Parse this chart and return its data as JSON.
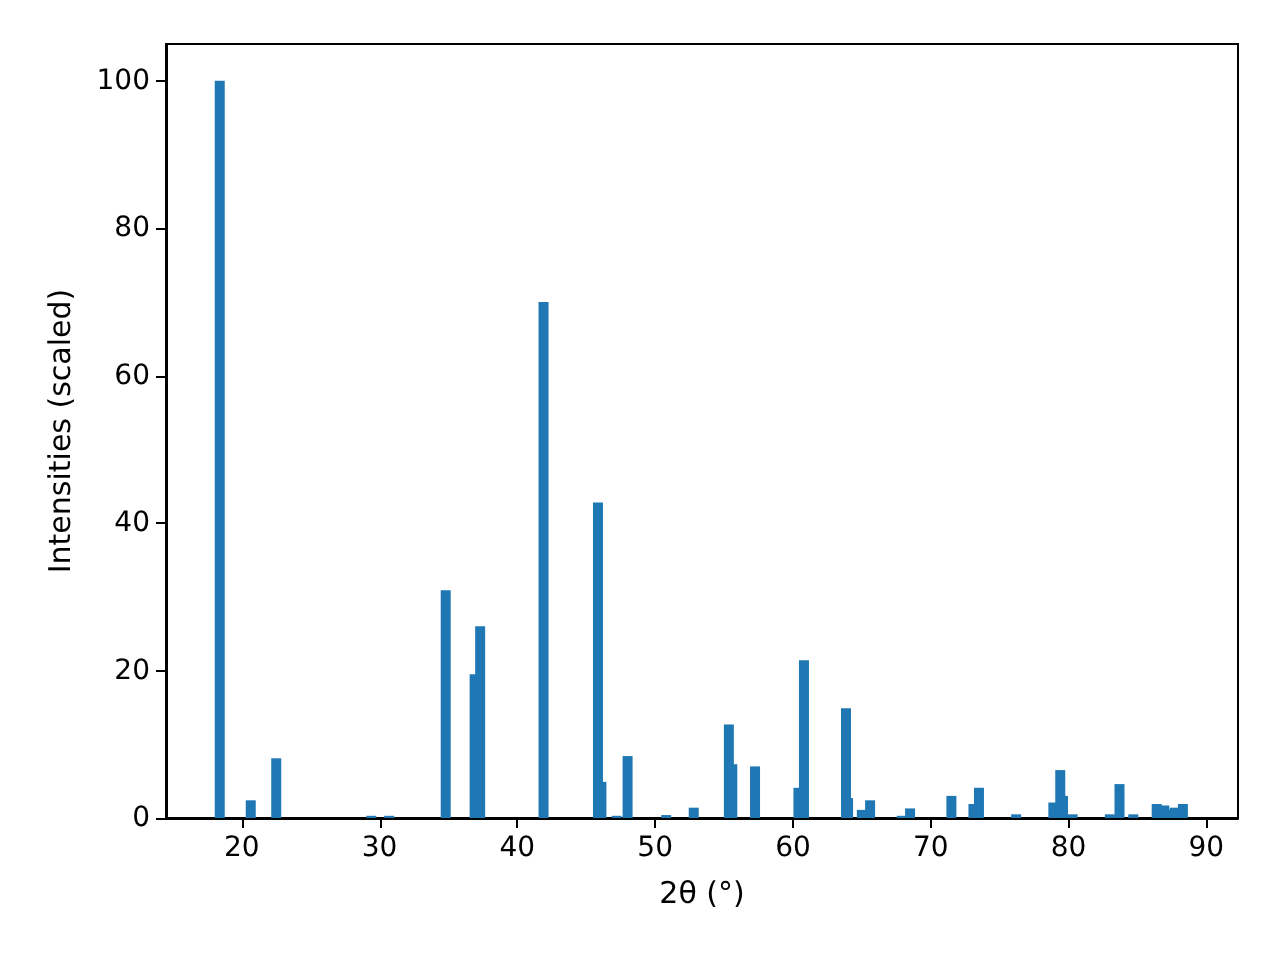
{
  "chart_data": {
    "type": "bar",
    "xlabel": "2θ (°)",
    "ylabel": "Intensities (scaled)",
    "color": "#1f77b4",
    "x": [
      18.4,
      20.65,
      22.5,
      29.4,
      30.7,
      34.8,
      36.9,
      37.3,
      41.9,
      45.85,
      46.1,
      47.2,
      48.0,
      50.8,
      52.8,
      55.35,
      55.6,
      57.25,
      60.4,
      60.8,
      63.85,
      64.0,
      65.0,
      65.6,
      67.9,
      68.5,
      71.5,
      73.1,
      73.5,
      76.2,
      78.9,
      79.4,
      79.6,
      80.3,
      83.0,
      83.7,
      84.7,
      86.4,
      86.95,
      87.25,
      87.7,
      88.3
    ],
    "values": [
      100,
      2.4,
      8.1,
      0.3,
      0.3,
      30.9,
      19.5,
      26,
      70,
      42.8,
      4.9,
      0.3,
      8.4,
      0.4,
      1.4,
      12.7,
      7.3,
      7.0,
      4.1,
      21.4,
      14.9,
      2.7,
      1.1,
      2.4,
      0.3,
      1.3,
      3.0,
      1.9,
      4.1,
      0.5,
      2.1,
      6.5,
      3.0,
      0.5,
      0.5,
      4.6,
      0.5,
      1.9,
      1.7,
      1.1,
      1.4,
      1.9
    ],
    "xlim": [
      14.5,
      92.3
    ],
    "xticks": [
      20,
      30,
      40,
      50,
      60,
      70,
      80,
      90
    ],
    "ylim": [
      0,
      105
    ],
    "yticks": [
      0,
      20,
      40,
      60,
      80,
      100
    ],
    "grid": false
  }
}
